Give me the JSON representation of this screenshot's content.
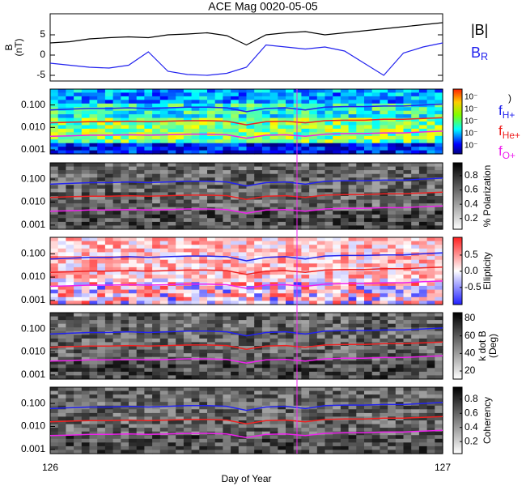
{
  "chart_data": [
    {
      "type": "line",
      "title": "ACE Mag 0020-05-05",
      "ylabel": [
        "B",
        "(nT)"
      ],
      "x": [
        126,
        126.05,
        126.1,
        126.15,
        126.2,
        126.25,
        126.3,
        126.35,
        126.4,
        126.45,
        126.5,
        126.55,
        126.6,
        126.65,
        126.7,
        126.75,
        126.8,
        126.85,
        126.9,
        126.95,
        127
      ],
      "series": [
        {
          "name": "|B|",
          "color": "#000000",
          "values": [
            3.0,
            3.3,
            4.0,
            4.3,
            4.5,
            4.3,
            5.0,
            5.2,
            5.5,
            4.8,
            2.5,
            5.0,
            5.5,
            5.8,
            5.0,
            5.5,
            6.0,
            6.5,
            7.0,
            7.5,
            8.0
          ]
        },
        {
          "name": "BR",
          "color": "#2222ee",
          "values": [
            -2.0,
            -2.5,
            -3.0,
            -3.2,
            -2.5,
            0.8,
            -4.0,
            -4.8,
            -5.0,
            -4.5,
            -3.0,
            2.5,
            2.0,
            1.5,
            2.0,
            1.0,
            -2.0,
            -5.0,
            0.5,
            2.0,
            3.0
          ]
        }
      ],
      "xlim": [
        126,
        127
      ],
      "ylim": [
        -6.4,
        10.2
      ],
      "yticks": [
        -5,
        0,
        5
      ]
    },
    {
      "type": "spectrogram",
      "log_y": true,
      "ylim": [
        0.00066,
        0.51
      ],
      "yticks": [
        0.001,
        {
          "value": 0.01,
          "label": "0.010"
        },
        {
          "value": 0.1,
          "label": "0.100"
        }
      ],
      "colormap": "jet",
      "colorbar_label": ")",
      "colorbar_tick_labels": [
        "10⁻",
        "10⁻",
        "10⁻",
        "10⁻",
        "10⁻"
      ],
      "x": [
        126,
        126.05,
        126.1,
        126.15,
        126.2,
        126.25,
        126.3,
        126.35,
        126.4,
        126.45,
        126.5,
        126.55,
        126.6,
        126.65,
        126.7,
        126.75,
        126.8,
        126.85,
        126.9,
        126.95,
        127
      ],
      "series": [
        {
          "name": "fH+",
          "color": "#2222ee",
          "values": [
            0.06,
            0.065,
            0.07,
            0.07,
            0.075,
            0.07,
            0.075,
            0.08,
            0.08,
            0.075,
            0.05,
            0.07,
            0.075,
            0.06,
            0.08,
            0.085,
            0.085,
            0.09,
            0.09,
            0.1,
            0.11
          ]
        },
        {
          "name": "fHe+",
          "color": "#ee2222",
          "values": [
            0.016,
            0.017,
            0.018,
            0.018,
            0.019,
            0.018,
            0.019,
            0.02,
            0.02,
            0.019,
            0.013,
            0.018,
            0.019,
            0.016,
            0.02,
            0.021,
            0.021,
            0.023,
            0.023,
            0.025,
            0.027
          ]
        },
        {
          "name": "fO+",
          "color": "#ee22ee",
          "values": [
            0.004,
            0.0042,
            0.0045,
            0.0045,
            0.0047,
            0.0045,
            0.0047,
            0.005,
            0.005,
            0.0047,
            0.0033,
            0.0045,
            0.0047,
            0.004,
            0.005,
            0.0053,
            0.0053,
            0.0057,
            0.0057,
            0.0063,
            0.0068
          ]
        }
      ]
    },
    {
      "type": "spectrogram",
      "log_y": true,
      "ylim": [
        0.00066,
        0.51
      ],
      "yticks": [
        0.001,
        {
          "value": 0.01,
          "label": "0.010"
        },
        {
          "value": 0.1,
          "label": "0.100"
        }
      ],
      "colormap": "gray",
      "colorbar_label": "% Polarization",
      "clim": [
        0.05,
        0.98
      ],
      "cticks": [
        0.2,
        0.4,
        0.6,
        0.8
      ]
    },
    {
      "type": "spectrogram",
      "log_y": true,
      "ylim": [
        0.00066,
        0.51
      ],
      "yticks": [
        0.001,
        {
          "value": 0.01,
          "label": "0.010"
        },
        {
          "value": 0.1,
          "label": "0.100"
        }
      ],
      "colormap": "bwr",
      "colorbar_label": "Ellipticity",
      "clim": [
        -1.03,
        1.05
      ],
      "cticks": [
        -0.5,
        {
          "value": 0,
          "label": "0.0"
        },
        0.5
      ]
    },
    {
      "type": "spectrogram",
      "log_y": true,
      "ylim": [
        0.00066,
        0.51
      ],
      "yticks": [
        0.001,
        {
          "value": 0.01,
          "label": "0.010"
        },
        {
          "value": 0.1,
          "label": "0.100"
        }
      ],
      "colormap": "gray",
      "colorbar_label": [
        "k dot B",
        "(Deg)"
      ],
      "clim": [
        10.8,
        86.5
      ],
      "cticks": [
        20,
        40,
        60,
        80
      ]
    },
    {
      "type": "spectrogram",
      "log_y": true,
      "ylim": [
        0.00066,
        0.51
      ],
      "yticks": [
        0.001,
        {
          "value": 0.01,
          "label": "0.010"
        },
        {
          "value": 0.1,
          "label": "0.100"
        }
      ],
      "colormap": "gray",
      "colorbar_label": "Coherency",
      "clim": [
        0.03,
        0.97
      ],
      "cticks": [
        0.2,
        0.4,
        0.6,
        0.8
      ],
      "xlim": [
        126,
        127
      ],
      "xticks": [
        126,
        127
      ],
      "xlabel": "Day of Year"
    }
  ]
}
